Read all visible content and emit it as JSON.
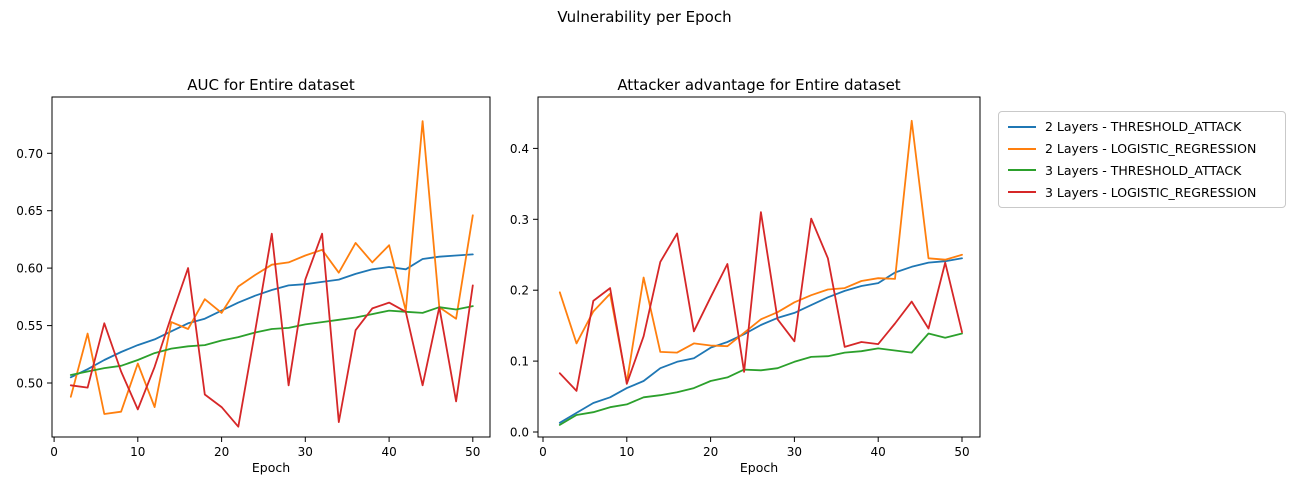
{
  "figure": {
    "suptitle": "Vulnerability per Epoch"
  },
  "legend": {
    "position": "outside-right",
    "entries": [
      {
        "label": "2 Layers - THRESHOLD_ATTACK",
        "color": "#1f77b4"
      },
      {
        "label": "2 Layers - LOGISTIC_REGRESSION",
        "color": "#ff7f0e"
      },
      {
        "label": "3 Layers - THRESHOLD_ATTACK",
        "color": "#2ca02c"
      },
      {
        "label": "3 Layers - LOGISTIC_REGRESSION",
        "color": "#d62728"
      }
    ]
  },
  "chart_data": [
    {
      "type": "line",
      "title": "AUC for Entire dataset",
      "xlabel": "Epoch",
      "ylabel": "",
      "grid": false,
      "xlim": [
        -0.25,
        52.05
      ],
      "ylim": [
        0.453,
        0.749
      ],
      "xticks": [
        0,
        10,
        20,
        30,
        40,
        50
      ],
      "xtick_labels": [
        "0",
        "10",
        "20",
        "30",
        "40",
        "50"
      ],
      "yticks": [
        0.5,
        0.55,
        0.6,
        0.65,
        0.7
      ],
      "ytick_labels": [
        "0.50",
        "0.55",
        "0.60",
        "0.65",
        "0.70"
      ],
      "x": [
        2,
        4,
        6,
        8,
        10,
        12,
        14,
        16,
        18,
        20,
        22,
        24,
        26,
        28,
        30,
        32,
        34,
        36,
        38,
        40,
        42,
        44,
        46,
        48,
        50
      ],
      "series": [
        {
          "name": "2 Layers - THRESHOLD_ATTACK",
          "color": "#1f77b4",
          "values": [
            0.505,
            0.512,
            0.52,
            0.527,
            0.533,
            0.538,
            0.545,
            0.552,
            0.556,
            0.563,
            0.57,
            0.576,
            0.581,
            0.585,
            0.586,
            0.588,
            0.59,
            0.595,
            0.599,
            0.601,
            0.599,
            0.608,
            0.61,
            0.611,
            0.612
          ]
        },
        {
          "name": "2 Layers - LOGISTIC_REGRESSION",
          "color": "#ff7f0e",
          "values": [
            0.488,
            0.543,
            0.473,
            0.475,
            0.517,
            0.479,
            0.553,
            0.547,
            0.573,
            0.561,
            0.584,
            0.594,
            0.603,
            0.605,
            0.611,
            0.616,
            0.596,
            0.622,
            0.605,
            0.62,
            0.563,
            0.728,
            0.566,
            0.556,
            0.646
          ]
        },
        {
          "name": "3 Layers - THRESHOLD_ATTACK",
          "color": "#2ca02c",
          "values": [
            0.507,
            0.51,
            0.513,
            0.515,
            0.52,
            0.526,
            0.53,
            0.532,
            0.533,
            0.537,
            0.54,
            0.544,
            0.547,
            0.548,
            0.551,
            0.553,
            0.555,
            0.557,
            0.56,
            0.563,
            0.562,
            0.561,
            0.566,
            0.564,
            0.567
          ]
        },
        {
          "name": "3 Layers - LOGISTIC_REGRESSION",
          "color": "#d62728",
          "values": [
            0.498,
            0.496,
            0.552,
            0.51,
            0.477,
            0.514,
            0.558,
            0.6,
            0.49,
            0.479,
            0.462,
            0.545,
            0.63,
            0.498,
            0.59,
            0.63,
            0.466,
            0.546,
            0.565,
            0.57,
            0.562,
            0.498,
            0.566,
            0.484,
            0.585
          ]
        }
      ]
    },
    {
      "type": "line",
      "title": "Attacker advantage for Entire dataset",
      "xlabel": "Epoch",
      "ylabel": "",
      "grid": false,
      "xlim": [
        -0.6,
        52.15
      ],
      "ylim": [
        -0.007,
        0.4725
      ],
      "xticks": [
        0,
        10,
        20,
        30,
        40,
        50
      ],
      "xtick_labels": [
        "0",
        "10",
        "20",
        "30",
        "40",
        "50"
      ],
      "yticks": [
        0.0,
        0.1,
        0.2,
        0.3,
        0.4
      ],
      "ytick_labels": [
        "0.0",
        "0.1",
        "0.2",
        "0.3",
        "0.4"
      ],
      "x": [
        2,
        4,
        6,
        8,
        10,
        12,
        14,
        16,
        18,
        20,
        22,
        24,
        26,
        28,
        30,
        32,
        34,
        36,
        38,
        40,
        42,
        44,
        46,
        48,
        50
      ],
      "series": [
        {
          "name": "2 Layers - THRESHOLD_ATTACK",
          "color": "#1f77b4",
          "values": [
            0.013,
            0.027,
            0.041,
            0.049,
            0.062,
            0.072,
            0.09,
            0.099,
            0.104,
            0.119,
            0.127,
            0.138,
            0.151,
            0.161,
            0.168,
            0.179,
            0.19,
            0.199,
            0.206,
            0.21,
            0.225,
            0.233,
            0.239,
            0.241,
            0.245
          ]
        },
        {
          "name": "2 Layers - LOGISTIC_REGRESSION",
          "color": "#ff7f0e",
          "values": [
            0.197,
            0.125,
            0.17,
            0.195,
            0.07,
            0.218,
            0.113,
            0.112,
            0.125,
            0.122,
            0.121,
            0.14,
            0.159,
            0.169,
            0.183,
            0.193,
            0.201,
            0.203,
            0.213,
            0.217,
            0.216,
            0.439,
            0.245,
            0.243,
            0.25
          ]
        },
        {
          "name": "3 Layers - THRESHOLD_ATTACK",
          "color": "#2ca02c",
          "values": [
            0.01,
            0.024,
            0.028,
            0.035,
            0.039,
            0.049,
            0.052,
            0.056,
            0.062,
            0.072,
            0.077,
            0.088,
            0.087,
            0.09,
            0.099,
            0.106,
            0.107,
            0.112,
            0.114,
            0.118,
            0.115,
            0.112,
            0.139,
            0.133,
            0.139
          ]
        },
        {
          "name": "3 Layers - LOGISTIC_REGRESSION",
          "color": "#d62728",
          "values": [
            0.083,
            0.058,
            0.185,
            0.203,
            0.068,
            0.135,
            0.24,
            0.28,
            0.142,
            0.19,
            0.237,
            0.085,
            0.31,
            0.159,
            0.128,
            0.301,
            0.245,
            0.12,
            0.127,
            0.124,
            0.153,
            0.184,
            0.146,
            0.239,
            0.141
          ]
        }
      ]
    }
  ]
}
